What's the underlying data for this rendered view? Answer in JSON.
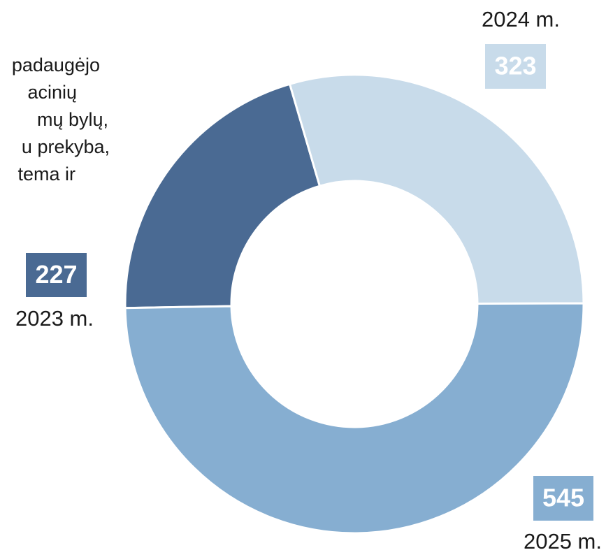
{
  "chart_data": {
    "type": "donut",
    "categories": [
      "2023 m.",
      "2024 m.",
      "2025 m."
    ],
    "values": [
      227,
      323,
      545
    ],
    "colors": [
      "#4a6a93",
      "#c8dbea",
      "#86aed1"
    ],
    "annotations": [
      "padaugėjo",
      "acinių",
      "mų bylų,",
      "u prekyba,",
      "tema ir"
    ]
  }
}
